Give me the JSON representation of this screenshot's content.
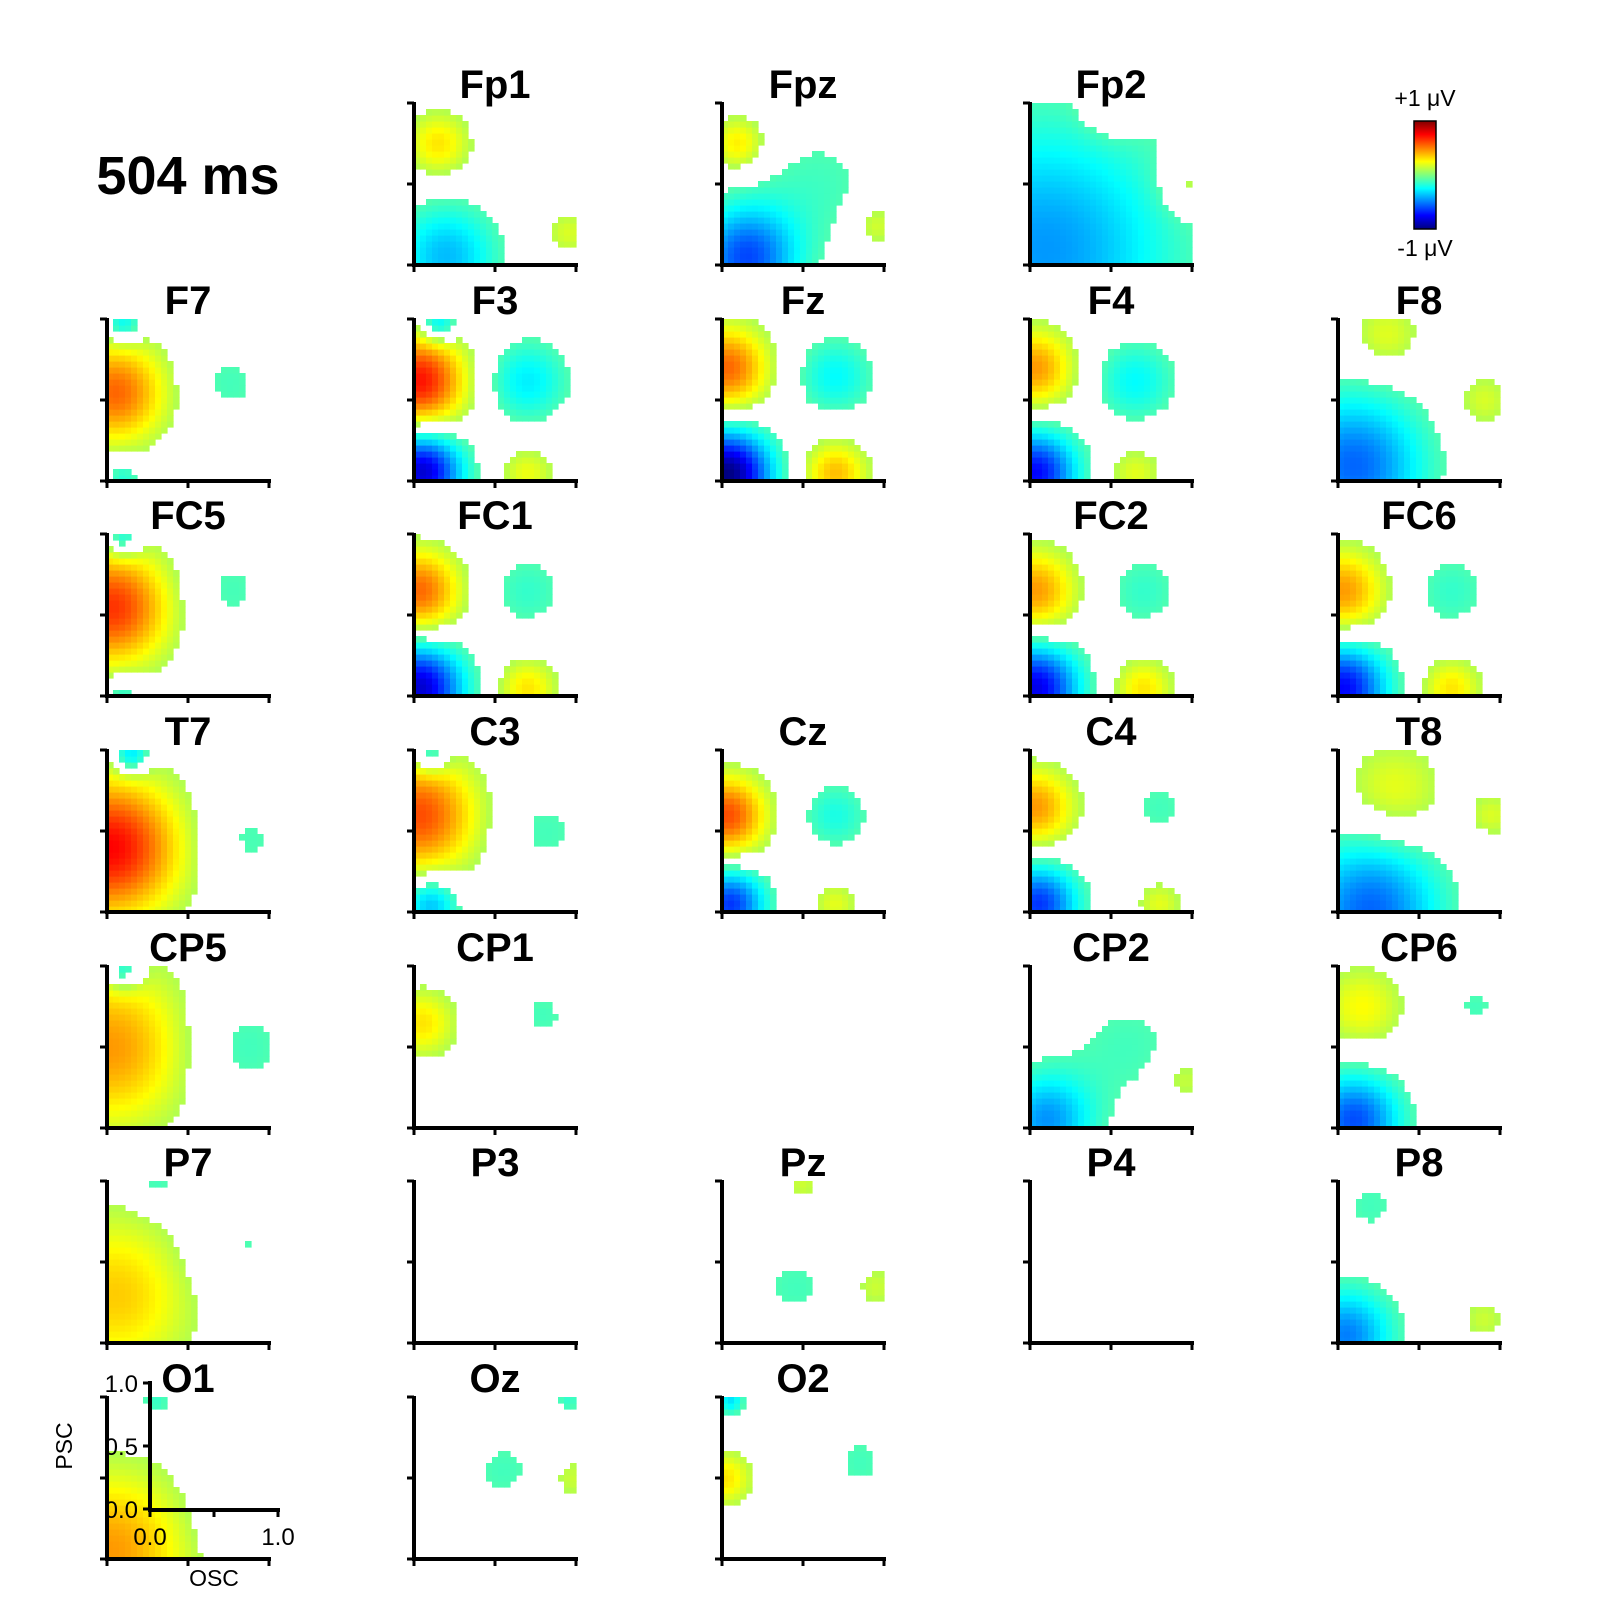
{
  "chart_data": {
    "type": "heatmap",
    "title": "504 ms",
    "colorbar": {
      "max_label": "+1 μV",
      "min_label": "-1 μV",
      "range": [
        -1,
        1
      ],
      "colormap": "jet",
      "colors": [
        "#00007f",
        "#0000ff",
        "#007fff",
        "#00ffff",
        "#7fff7f",
        "#ffff00",
        "#ff7f00",
        "#ff0000",
        "#7f0000"
      ]
    },
    "key_axes": {
      "xlabel": "OSC",
      "ylabel": "PSC",
      "xticks": [
        "0.0",
        "1.0"
      ],
      "yticks": [
        "0.0",
        "0.5",
        "1.0"
      ],
      "xlim": [
        0,
        1
      ],
      "ylim": [
        0,
        1
      ]
    },
    "maps": [
      {
        "electrode": "Fp1",
        "row": 0,
        "col": 1,
        "features": [
          {
            "x": 0.15,
            "y": 0.75,
            "amp": 0.3,
            "s": 0.14
          },
          {
            "x": 0.2,
            "y": 0.06,
            "amp": -0.38,
            "s": 0.22
          },
          {
            "x": 0.95,
            "y": 0.2,
            "amp": 0.18,
            "s": 0.1
          }
        ]
      },
      {
        "electrode": "Fpz",
        "row": 0,
        "col": 2,
        "features": [
          {
            "x": 0.1,
            "y": 0.75,
            "amp": 0.3,
            "s": 0.12
          },
          {
            "x": 0.15,
            "y": 0.05,
            "amp": -0.6,
            "s": 0.22
          },
          {
            "x": 0.6,
            "y": 0.5,
            "amp": -0.12,
            "s": 0.3
          },
          {
            "x": 0.95,
            "y": 0.25,
            "amp": 0.2,
            "s": 0.1
          }
        ]
      },
      {
        "electrode": "Fp2",
        "row": 0,
        "col": 3,
        "features": [
          {
            "x": 0.1,
            "y": 0.1,
            "amp": -0.45,
            "s": 0.55
          },
          {
            "x": 0.5,
            "y": 0.98,
            "amp": 0.18,
            "s": 0.12
          },
          {
            "x": 0.98,
            "y": 0.5,
            "amp": 0.2,
            "s": 0.12
          }
        ]
      },
      {
        "electrode": "F7",
        "row": 1,
        "col": 0,
        "features": [
          {
            "x": 0.05,
            "y": 0.55,
            "amp": 0.55,
            "s": 0.22
          },
          {
            "x": 0.75,
            "y": 0.6,
            "amp": -0.12,
            "s": 0.18
          },
          {
            "x": 0.1,
            "y": 0.97,
            "amp": -0.3,
            "s": 0.08
          },
          {
            "x": 0.1,
            "y": 0.03,
            "amp": -0.2,
            "s": 0.08
          }
        ]
      },
      {
        "electrode": "F3",
        "row": 1,
        "col": 1,
        "features": [
          {
            "x": 0.03,
            "y": 0.62,
            "amp": 0.72,
            "s": 0.2
          },
          {
            "x": 0.05,
            "y": 0.06,
            "amp": -0.85,
            "s": 0.17
          },
          {
            "x": 0.7,
            "y": 0.62,
            "amp": -0.28,
            "s": 0.18
          },
          {
            "x": 0.7,
            "y": 0.05,
            "amp": 0.22,
            "s": 0.12
          },
          {
            "x": 0.15,
            "y": 0.97,
            "amp": -0.35,
            "s": 0.08
          }
        ]
      },
      {
        "electrode": "Fz",
        "row": 1,
        "col": 2,
        "features": [
          {
            "x": 0.03,
            "y": 0.7,
            "amp": 0.55,
            "s": 0.18
          },
          {
            "x": 0.03,
            "y": 0.04,
            "amp": -1.0,
            "s": 0.19
          },
          {
            "x": 0.7,
            "y": 0.65,
            "amp": -0.25,
            "s": 0.17
          },
          {
            "x": 0.7,
            "y": 0.05,
            "amp": 0.38,
            "s": 0.14
          }
        ]
      },
      {
        "electrode": "F4",
        "row": 1,
        "col": 3,
        "features": [
          {
            "x": 0.03,
            "y": 0.7,
            "amp": 0.45,
            "s": 0.17
          },
          {
            "x": 0.03,
            "y": 0.05,
            "amp": -0.75,
            "s": 0.18
          },
          {
            "x": 0.65,
            "y": 0.62,
            "amp": -0.25,
            "s": 0.18
          },
          {
            "x": 0.65,
            "y": 0.05,
            "amp": 0.2,
            "s": 0.12
          }
        ]
      },
      {
        "electrode": "F8",
        "row": 1,
        "col": 4,
        "features": [
          {
            "x": 0.1,
            "y": 0.1,
            "amp": -0.55,
            "s": 0.3
          },
          {
            "x": 0.3,
            "y": 0.9,
            "amp": 0.2,
            "s": 0.15
          },
          {
            "x": 0.9,
            "y": 0.5,
            "amp": 0.18,
            "s": 0.12
          }
        ]
      },
      {
        "electrode": "FC5",
        "row": 2,
        "col": 0,
        "features": [
          {
            "x": 0.03,
            "y": 0.55,
            "amp": 0.65,
            "s": 0.25
          },
          {
            "x": 0.75,
            "y": 0.65,
            "amp": -0.12,
            "s": 0.2
          },
          {
            "x": 0.1,
            "y": 0.97,
            "amp": -0.3,
            "s": 0.08
          },
          {
            "x": 0.1,
            "y": 0.02,
            "amp": -0.2,
            "s": 0.08
          }
        ]
      },
      {
        "electrode": "FC1",
        "row": 2,
        "col": 1,
        "features": [
          {
            "x": 0.03,
            "y": 0.65,
            "amp": 0.55,
            "s": 0.18
          },
          {
            "x": 0.03,
            "y": 0.05,
            "amp": -0.85,
            "s": 0.19
          },
          {
            "x": 0.7,
            "y": 0.65,
            "amp": -0.15,
            "s": 0.18
          },
          {
            "x": 0.7,
            "y": 0.05,
            "amp": 0.3,
            "s": 0.13
          }
        ]
      },
      {
        "electrode": "FC2",
        "row": 2,
        "col": 3,
        "features": [
          {
            "x": 0.03,
            "y": 0.65,
            "amp": 0.45,
            "s": 0.18
          },
          {
            "x": 0.03,
            "y": 0.05,
            "amp": -0.8,
            "s": 0.19
          },
          {
            "x": 0.7,
            "y": 0.65,
            "amp": -0.15,
            "s": 0.18
          },
          {
            "x": 0.7,
            "y": 0.05,
            "amp": 0.3,
            "s": 0.13
          }
        ]
      },
      {
        "electrode": "FC6",
        "row": 2,
        "col": 4,
        "features": [
          {
            "x": 0.03,
            "y": 0.65,
            "amp": 0.45,
            "s": 0.18
          },
          {
            "x": 0.03,
            "y": 0.05,
            "amp": -0.75,
            "s": 0.19
          },
          {
            "x": 0.7,
            "y": 0.65,
            "amp": -0.15,
            "s": 0.18
          },
          {
            "x": 0.7,
            "y": 0.05,
            "amp": 0.3,
            "s": 0.13
          }
        ]
      },
      {
        "electrode": "T7",
        "row": 3,
        "col": 0,
        "features": [
          {
            "x": 0.02,
            "y": 0.4,
            "amp": 0.75,
            "s": 0.3
          },
          {
            "x": 0.85,
            "y": 0.45,
            "amp": -0.12,
            "s": 0.2
          },
          {
            "x": 0.15,
            "y": 0.97,
            "amp": -0.38,
            "s": 0.08
          }
        ]
      },
      {
        "electrode": "C3",
        "row": 3,
        "col": 1,
        "features": [
          {
            "x": 0.03,
            "y": 0.6,
            "amp": 0.6,
            "s": 0.25
          },
          {
            "x": 0.1,
            "y": 0.05,
            "amp": -0.4,
            "s": 0.12
          },
          {
            "x": 0.8,
            "y": 0.5,
            "amp": -0.12,
            "s": 0.2
          },
          {
            "x": 0.1,
            "y": 0.97,
            "amp": -0.3,
            "s": 0.08
          }
        ]
      },
      {
        "electrode": "Cz",
        "row": 3,
        "col": 2,
        "features": [
          {
            "x": 0.03,
            "y": 0.6,
            "amp": 0.6,
            "s": 0.17
          },
          {
            "x": 0.05,
            "y": 0.05,
            "amp": -0.65,
            "s": 0.15
          },
          {
            "x": 0.7,
            "y": 0.6,
            "amp": -0.2,
            "s": 0.15
          },
          {
            "x": 0.7,
            "y": 0.05,
            "amp": 0.2,
            "s": 0.1
          }
        ]
      },
      {
        "electrode": "C4",
        "row": 3,
        "col": 3,
        "features": [
          {
            "x": 0.03,
            "y": 0.65,
            "amp": 0.45,
            "s": 0.17
          },
          {
            "x": 0.05,
            "y": 0.05,
            "amp": -0.65,
            "s": 0.17
          },
          {
            "x": 0.8,
            "y": 0.65,
            "amp": -0.12,
            "s": 0.15
          },
          {
            "x": 0.8,
            "y": 0.05,
            "amp": 0.2,
            "s": 0.1
          }
        ]
      },
      {
        "electrode": "T8",
        "row": 3,
        "col": 4,
        "features": [
          {
            "x": 0.35,
            "y": 0.75,
            "amp": 0.22,
            "s": 0.22
          },
          {
            "x": 0.2,
            "y": 0.02,
            "amp": -0.55,
            "s": 0.3
          },
          {
            "x": 0.95,
            "y": 0.6,
            "amp": 0.18,
            "s": 0.1
          }
        ]
      },
      {
        "electrode": "CP5",
        "row": 4,
        "col": 0,
        "features": [
          {
            "x": 0.02,
            "y": 0.5,
            "amp": 0.45,
            "s": 0.35
          },
          {
            "x": 0.8,
            "y": 0.5,
            "amp": -0.15,
            "s": 0.25
          },
          {
            "x": 0.1,
            "y": 0.97,
            "amp": -0.32,
            "s": 0.08
          }
        ]
      },
      {
        "electrode": "CP1",
        "row": 4,
        "col": 1,
        "features": [
          {
            "x": 0.05,
            "y": 0.65,
            "amp": 0.3,
            "s": 0.15
          },
          {
            "x": 0.8,
            "y": 0.7,
            "amp": -0.12,
            "s": 0.12
          }
        ]
      },
      {
        "electrode": "CP2",
        "row": 4,
        "col": 3,
        "features": [
          {
            "x": 0.1,
            "y": 0.05,
            "amp": -0.45,
            "s": 0.2
          },
          {
            "x": 0.6,
            "y": 0.5,
            "amp": -0.12,
            "s": 0.3
          },
          {
            "x": 0.95,
            "y": 0.3,
            "amp": 0.18,
            "s": 0.1
          }
        ]
      },
      {
        "electrode": "CP6",
        "row": 4,
        "col": 4,
        "features": [
          {
            "x": 0.15,
            "y": 0.75,
            "amp": 0.25,
            "s": 0.18
          },
          {
            "x": 0.1,
            "y": 0.05,
            "amp": -0.6,
            "s": 0.2
          },
          {
            "x": 0.85,
            "y": 0.75,
            "amp": -0.12,
            "s": 0.1
          }
        ]
      },
      {
        "electrode": "P7",
        "row": 5,
        "col": 0,
        "features": [
          {
            "x": 0.05,
            "y": 0.3,
            "amp": 0.35,
            "s": 0.35
          },
          {
            "x": 0.8,
            "y": 0.6,
            "amp": -0.12,
            "s": 0.25
          },
          {
            "x": 0.3,
            "y": 0.98,
            "amp": -0.15,
            "s": 0.1
          }
        ]
      },
      {
        "electrode": "P3",
        "row": 5,
        "col": 1,
        "features": []
      },
      {
        "electrode": "Pz",
        "row": 5,
        "col": 2,
        "features": [
          {
            "x": 0.45,
            "y": 0.35,
            "amp": -0.12,
            "s": 0.18
          },
          {
            "x": 0.5,
            "y": 0.98,
            "amp": 0.15,
            "s": 0.08
          },
          {
            "x": 0.95,
            "y": 0.35,
            "amp": 0.15,
            "s": 0.1
          }
        ]
      },
      {
        "electrode": "P4",
        "row": 5,
        "col": 3,
        "features": []
      },
      {
        "electrode": "P8",
        "row": 5,
        "col": 4,
        "features": [
          {
            "x": 0.2,
            "y": 0.85,
            "amp": -0.12,
            "s": 0.15
          },
          {
            "x": 0.05,
            "y": 0.05,
            "amp": -0.5,
            "s": 0.2
          },
          {
            "x": 0.9,
            "y": 0.15,
            "amp": 0.15,
            "s": 0.1
          }
        ]
      },
      {
        "electrode": "O1",
        "row": 6,
        "col": 0,
        "features": [
          {
            "x": 0.02,
            "y": 0.05,
            "amp": 0.45,
            "s": 0.35
          },
          {
            "x": 0.8,
            "y": 0.3,
            "amp": -0.12,
            "s": 0.2
          },
          {
            "x": 0.3,
            "y": 0.97,
            "amp": -0.15,
            "s": 0.08
          }
        ]
      },
      {
        "electrode": "Oz",
        "row": 6,
        "col": 1,
        "features": [
          {
            "x": 0.55,
            "y": 0.55,
            "amp": -0.12,
            "s": 0.17
          },
          {
            "x": 0.98,
            "y": 0.5,
            "amp": 0.15,
            "s": 0.1
          },
          {
            "x": 0.95,
            "y": 0.98,
            "amp": -0.15,
            "s": 0.06
          }
        ]
      },
      {
        "electrode": "O2",
        "row": 6,
        "col": 2,
        "features": [
          {
            "x": 0.02,
            "y": 0.5,
            "amp": 0.3,
            "s": 0.12
          },
          {
            "x": 0.85,
            "y": 0.6,
            "amp": -0.12,
            "s": 0.15
          },
          {
            "x": 0.05,
            "y": 0.98,
            "amp": -0.3,
            "s": 0.06
          }
        ]
      }
    ]
  }
}
